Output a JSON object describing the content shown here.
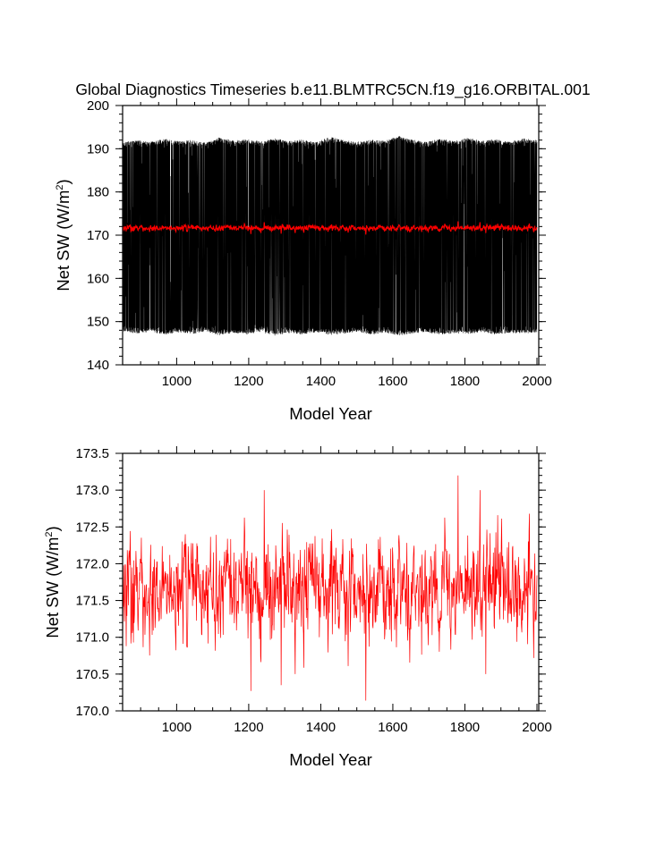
{
  "figure": {
    "title": "Global Diagnostics Timeseries b.e11.BLMTRC5CN.f19_g16.ORBITAL.001"
  },
  "colors": {
    "monthly": "#000000",
    "annual": "#ff0000",
    "axes": "#000000"
  },
  "chart_data": [
    {
      "type": "line",
      "panel": "top",
      "xlabel": "Model Year",
      "ylabel_main": "Net SW (W/m",
      "ylabel_sup": "2",
      "ylabel_close": ")",
      "xlim": [
        850,
        2005
      ],
      "ylim": [
        140,
        200
      ],
      "xticks": [
        1000,
        1200,
        1400,
        1600,
        1800,
        2000
      ],
      "xtick_labels": [
        "1000",
        "1200",
        "1400",
        "1600",
        "1800",
        "2000"
      ],
      "yticks": [
        140,
        150,
        160,
        170,
        180,
        190,
        200
      ],
      "ytick_labels": [
        "140",
        "150",
        "160",
        "170",
        "180",
        "190",
        "200"
      ],
      "series": [
        {
          "color": "#000000",
          "kind": "monthly-envelope",
          "x_range": [
            850,
            2000
          ],
          "upper_values": [
            191.5,
            192.0,
            191.6,
            192.3,
            191.8,
            192.0,
            191.4,
            192.6,
            191.9,
            192.2,
            191.7,
            192.4,
            191.8,
            192.1,
            191.5,
            192.8,
            192.0,
            191.6,
            192.2,
            191.9,
            193.0,
            192.1,
            191.7,
            192.3,
            191.8,
            192.5,
            191.9,
            192.2,
            191.6,
            192.4,
            192.0
          ],
          "lower_values": [
            147.8,
            147.2,
            147.6,
            146.9,
            147.5,
            147.1,
            147.7,
            146.8,
            147.4,
            147.0,
            147.6,
            146.7,
            147.3,
            147.0,
            147.5,
            146.9,
            147.2,
            147.6,
            147.0,
            147.4,
            146.8,
            147.2,
            147.5,
            146.9,
            147.3,
            147.1,
            147.6,
            147.0,
            147.4,
            147.2,
            147.5
          ]
        },
        {
          "color": "#ff0000",
          "kind": "annual-mean",
          "mean": 171.65,
          "range": [
            171.3,
            172.2
          ]
        }
      ]
    },
    {
      "type": "line",
      "panel": "bottom",
      "xlabel": "Model Year",
      "ylabel_main": "Net SW (W/m",
      "ylabel_sup": "2",
      "ylabel_close": ")",
      "xlim": [
        850,
        2005
      ],
      "ylim": [
        170.0,
        173.5
      ],
      "xticks": [
        1000,
        1200,
        1400,
        1600,
        1800,
        2000
      ],
      "xtick_labels": [
        "1000",
        "1200",
        "1400",
        "1600",
        "1800",
        "2000"
      ],
      "yticks": [
        170.0,
        170.5,
        171.0,
        171.5,
        172.0,
        172.5,
        173.0,
        173.5
      ],
      "ytick_labels": [
        "170.0",
        "170.5",
        "171.0",
        "171.5",
        "172.0",
        "172.5",
        "173.0",
        "173.5"
      ],
      "series": [
        {
          "color": "#ff0000",
          "kind": "annual-mean",
          "x_range": [
            850,
            2000
          ],
          "mean": 171.65,
          "typical_range": [
            170.9,
            172.4
          ],
          "extremes": [
            {
              "x": 1206,
              "y": 170.27
            },
            {
              "x": 1243,
              "y": 173.0
            },
            {
              "x": 1290,
              "y": 170.35
            },
            {
              "x": 1329,
              "y": 170.5
            },
            {
              "x": 1525,
              "y": 170.14
            },
            {
              "x": 1781,
              "y": 173.2
            },
            {
              "x": 1842,
              "y": 173.0
            },
            {
              "x": 1858,
              "y": 170.5
            }
          ]
        }
      ]
    }
  ]
}
